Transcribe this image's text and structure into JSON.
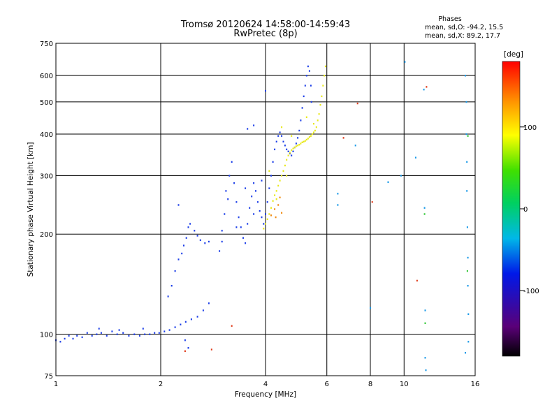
{
  "chart_data": {
    "type": "scatter",
    "title": "Tromsø 20120624 14:58:00-14:59:43",
    "subtitle": "RwPretec (8p)",
    "xlabel": "Frequency [MHz]",
    "ylabel": "Stationary phase Virtual Height [km]",
    "xscale": "log",
    "yscale": "log",
    "xlim": [
      1,
      16
    ],
    "ylim": [
      75,
      750
    ],
    "x_ticks": [
      1,
      2,
      4,
      6,
      8,
      10,
      16
    ],
    "y_ticks": [
      75,
      100,
      200,
      300,
      400,
      500,
      600,
      750
    ],
    "grid": true,
    "stats": {
      "heading": "Phases",
      "line_o": "mean, sd,O: -94.2, 15.5",
      "line_x": "mean, sd,X:  89.2, 17.7"
    },
    "colorbar": {
      "label": "[deg]",
      "range": [
        -180,
        180
      ],
      "ticks": [
        100,
        0,
        -100
      ]
    },
    "series": [
      {
        "phase_deg": -94,
        "color": "#1d3fe8",
        "points": [
          [
            1.0,
            96
          ],
          [
            1.03,
            95
          ],
          [
            1.06,
            97
          ],
          [
            1.09,
            99
          ],
          [
            1.12,
            97
          ],
          [
            1.15,
            99
          ],
          [
            1.19,
            98
          ],
          [
            1.23,
            101
          ],
          [
            1.27,
            99
          ],
          [
            1.31,
            100
          ],
          [
            1.35,
            101
          ],
          [
            1.4,
            99
          ],
          [
            1.45,
            102
          ],
          [
            1.5,
            100
          ],
          [
            1.56,
            101
          ],
          [
            1.62,
            99
          ],
          [
            1.68,
            100
          ],
          [
            1.74,
            99
          ],
          [
            1.8,
            100
          ],
          [
            1.86,
            100
          ],
          [
            1.92,
            101
          ],
          [
            1.98,
            101
          ],
          [
            2.05,
            102
          ],
          [
            2.12,
            103
          ],
          [
            2.2,
            105
          ],
          [
            2.28,
            107
          ],
          [
            2.36,
            109
          ],
          [
            2.45,
            111
          ],
          [
            2.55,
            113
          ],
          [
            2.65,
            118
          ],
          [
            2.75,
            124
          ],
          [
            1.33,
            104
          ],
          [
            1.52,
            103
          ],
          [
            1.78,
            104
          ],
          [
            2.35,
            96
          ],
          [
            2.4,
            91
          ],
          [
            2.1,
            130
          ],
          [
            2.15,
            140
          ],
          [
            2.2,
            155
          ],
          [
            2.25,
            168
          ],
          [
            2.3,
            175
          ],
          [
            2.33,
            185
          ],
          [
            2.37,
            195
          ],
          [
            2.4,
            210
          ],
          [
            2.43,
            215
          ],
          [
            2.5,
            205
          ],
          [
            2.55,
            198
          ],
          [
            2.6,
            192
          ],
          [
            2.68,
            188
          ],
          [
            2.75,
            190
          ],
          [
            2.25,
            245
          ],
          [
            2.95,
            178
          ],
          [
            3.0,
            190
          ],
          [
            3.0,
            205
          ],
          [
            3.05,
            230
          ],
          [
            3.08,
            270
          ],
          [
            3.12,
            255
          ],
          [
            3.15,
            300
          ],
          [
            3.2,
            330
          ],
          [
            3.25,
            285
          ],
          [
            3.3,
            250
          ],
          [
            3.35,
            225
          ],
          [
            3.4,
            210
          ],
          [
            3.45,
            195
          ],
          [
            3.5,
            188
          ],
          [
            3.55,
            215
          ],
          [
            3.6,
            240
          ],
          [
            3.65,
            260
          ],
          [
            3.7,
            285
          ],
          [
            3.75,
            270
          ],
          [
            3.8,
            250
          ],
          [
            3.85,
            235
          ],
          [
            3.9,
            225
          ],
          [
            3.95,
            215
          ],
          [
            4.0,
            230
          ],
          [
            4.05,
            250
          ],
          [
            4.1,
            275
          ],
          [
            4.15,
            300
          ],
          [
            4.2,
            330
          ],
          [
            4.25,
            360
          ],
          [
            4.3,
            380
          ],
          [
            4.35,
            395
          ],
          [
            4.4,
            405
          ],
          [
            4.45,
            395
          ],
          [
            4.5,
            380
          ],
          [
            4.55,
            370
          ],
          [
            4.6,
            360
          ],
          [
            4.65,
            355
          ],
          [
            4.7,
            350
          ],
          [
            4.75,
            345
          ],
          [
            4.8,
            355
          ],
          [
            4.85,
            365
          ],
          [
            4.9,
            375
          ],
          [
            4.95,
            390
          ],
          [
            5.0,
            410
          ],
          [
            5.05,
            440
          ],
          [
            5.1,
            480
          ],
          [
            5.15,
            520
          ],
          [
            5.2,
            560
          ],
          [
            5.25,
            600
          ],
          [
            5.3,
            640
          ],
          [
            5.35,
            620
          ],
          [
            5.4,
            560
          ],
          [
            5.42,
            500
          ],
          [
            3.3,
            210
          ],
          [
            3.5,
            275
          ],
          [
            3.7,
            230
          ],
          [
            3.9,
            290
          ],
          [
            4.0,
            540
          ],
          [
            3.55,
            415
          ],
          [
            3.7,
            425
          ]
        ]
      },
      {
        "phase_deg": 89,
        "color": "#e8e81a",
        "points": [
          [
            3.95,
            208
          ],
          [
            4.0,
            215
          ],
          [
            4.05,
            222
          ],
          [
            4.1,
            230
          ],
          [
            4.15,
            240
          ],
          [
            4.2,
            252
          ],
          [
            4.25,
            262
          ],
          [
            4.3,
            270
          ],
          [
            4.35,
            280
          ],
          [
            4.4,
            290
          ],
          [
            4.45,
            300
          ],
          [
            4.5,
            310
          ],
          [
            4.55,
            322
          ],
          [
            4.6,
            335
          ],
          [
            4.65,
            345
          ],
          [
            4.7,
            352
          ],
          [
            4.75,
            358
          ],
          [
            4.8,
            362
          ],
          [
            4.85,
            365
          ],
          [
            4.9,
            368
          ],
          [
            4.95,
            370
          ],
          [
            5.0,
            372
          ],
          [
            5.05,
            375
          ],
          [
            5.1,
            378
          ],
          [
            5.15,
            380
          ],
          [
            5.2,
            382
          ],
          [
            5.25,
            385
          ],
          [
            5.3,
            388
          ],
          [
            5.35,
            392
          ],
          [
            5.4,
            395
          ],
          [
            5.45,
            400
          ],
          [
            5.5,
            405
          ],
          [
            5.55,
            410
          ],
          [
            5.6,
            420
          ],
          [
            5.65,
            440
          ],
          [
            5.7,
            460
          ],
          [
            5.75,
            490
          ],
          [
            5.8,
            520
          ],
          [
            5.85,
            560
          ],
          [
            5.9,
            600
          ],
          [
            5.95,
            640
          ],
          [
            4.1,
            310
          ],
          [
            4.3,
            255
          ],
          [
            4.45,
            420
          ],
          [
            4.6,
            300
          ],
          [
            4.75,
            395
          ],
          [
            5.25,
            450
          ],
          [
            5.5,
            430
          ]
        ]
      },
      {
        "phase_deg": 150,
        "color": "#f08a10",
        "points": [
          [
            4.15,
            228
          ],
          [
            4.25,
            238
          ],
          [
            4.35,
            245
          ],
          [
            4.4,
            258
          ],
          [
            4.28,
            225
          ],
          [
            4.45,
            232
          ]
        ]
      },
      {
        "phase_deg": -60,
        "color": "#1a9ae8",
        "points": [
          [
            6.45,
            265
          ],
          [
            6.45,
            245
          ],
          [
            7.25,
            370
          ],
          [
            8.0,
            120
          ],
          [
            9.0,
            287
          ],
          [
            9.8,
            300
          ],
          [
            10.05,
            660
          ],
          [
            10.8,
            340
          ],
          [
            11.4,
            545
          ],
          [
            11.45,
            240
          ],
          [
            11.5,
            118
          ],
          [
            11.5,
            85
          ],
          [
            11.55,
            78
          ],
          [
            15.0,
            88
          ],
          [
            15.0,
            600
          ],
          [
            15.1,
            500
          ],
          [
            15.1,
            400
          ],
          [
            15.15,
            330
          ],
          [
            15.15,
            270
          ],
          [
            15.2,
            210
          ],
          [
            15.25,
            170
          ],
          [
            15.25,
            140
          ],
          [
            15.3,
            115
          ],
          [
            15.3,
            95
          ]
        ]
      },
      {
        "phase_deg": 20,
        "color": "#34c838",
        "points": [
          [
            11.45,
            230
          ],
          [
            11.5,
            108
          ],
          [
            15.2,
            155
          ],
          [
            15.25,
            395
          ]
        ]
      },
      {
        "phase_deg": 160,
        "color": "#e03a1a",
        "points": [
          [
            2.35,
            89
          ],
          [
            8.1,
            250
          ],
          [
            7.35,
            495
          ],
          [
            6.7,
            390
          ],
          [
            10.9,
            145
          ],
          [
            3.2,
            106
          ],
          [
            11.6,
            555
          ],
          [
            2.8,
            90
          ]
        ]
      }
    ]
  }
}
